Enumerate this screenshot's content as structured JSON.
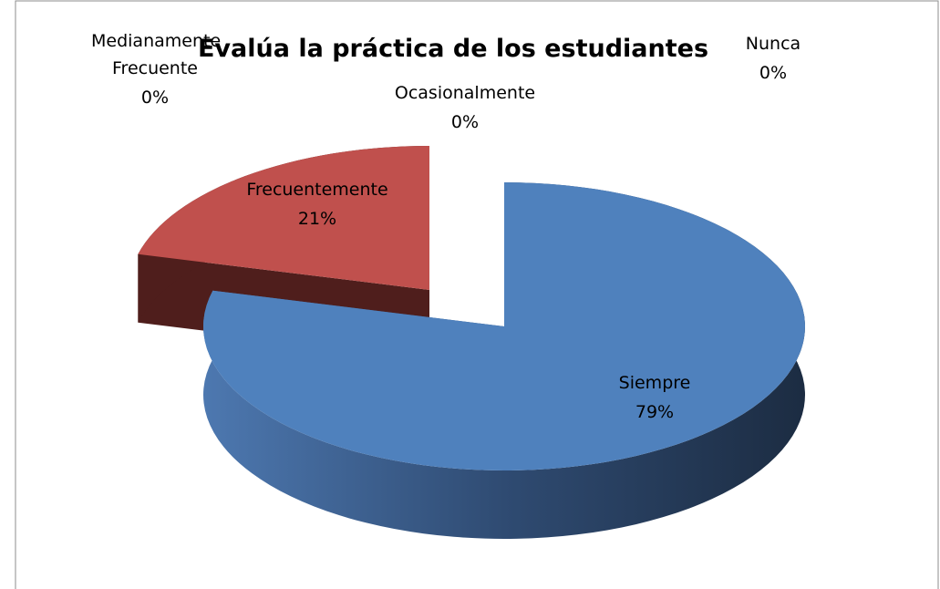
{
  "chart_data": {
    "type": "pie",
    "title": "Evalúa la práctica de los estudiantes",
    "categories": [
      "Siempre",
      "Frecuentemente",
      "Ocasionalmente",
      "Medianamente Frecuente",
      "Nunca"
    ],
    "values": [
      79,
      21,
      0,
      0,
      0
    ],
    "value_labels": [
      "79%",
      "21%",
      "0%",
      "0%",
      "0%"
    ],
    "colors": [
      "#4f81bd",
      "#c0504d",
      "#9bbb59",
      "#8064a2",
      "#4bacc6"
    ]
  }
}
